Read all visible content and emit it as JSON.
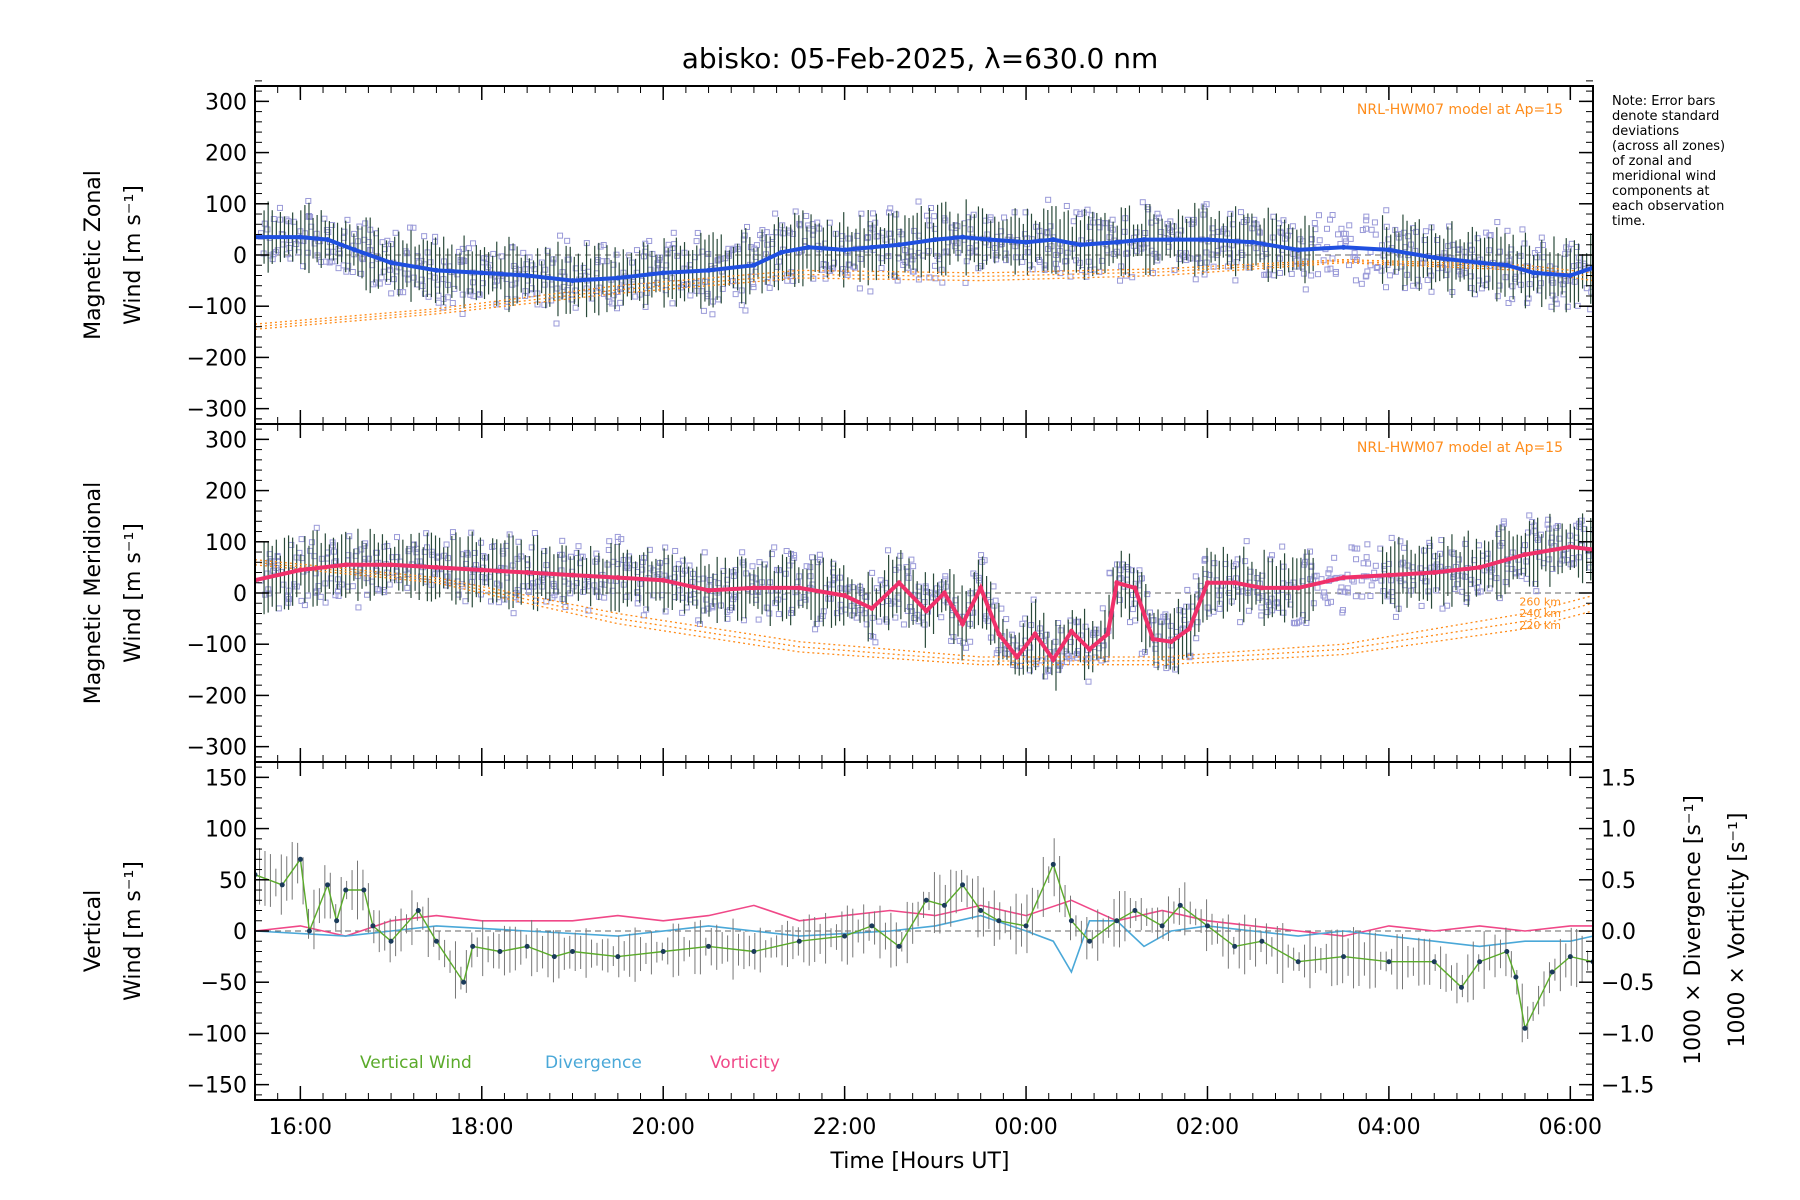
{
  "chart_data": {
    "title": "abisko: 05-Feb-2025, λ=630.0 nm",
    "x_axis": {
      "label": "Time [Hours UT]",
      "ticks": [
        "16:00",
        "18:00",
        "20:00",
        "22:00",
        "00:00",
        "02:00",
        "04:00",
        "06:00"
      ],
      "tick_hours": [
        16,
        18,
        20,
        22,
        24,
        26,
        28,
        30
      ],
      "range_hours": [
        15.5,
        30.25
      ]
    },
    "note": [
      "Note: Error bars",
      "denote standard",
      "deviations",
      "(across all zones)",
      "of zonal and",
      "meridional wind",
      "components at",
      "each observation",
      "time."
    ],
    "panels": [
      {
        "id": "zonal",
        "type": "line",
        "ylabel": [
          "Magnetic Zonal",
          "Wind [m s⁻¹]"
        ],
        "ylim": [
          -330,
          330
        ],
        "yticks": [
          300,
          200,
          100,
          0,
          -100,
          -200,
          -300
        ],
        "model_label": "NRL-HWM07 model at Ap=15",
        "series": [
          {
            "name": "Magnetic Zonal Wind",
            "x": [
              15.5,
              16.0,
              16.3,
              16.6,
              17.0,
              17.5,
              18.0,
              18.5,
              19.0,
              19.5,
              20.0,
              20.5,
              21.0,
              21.3,
              21.6,
              22.0,
              22.3,
              22.6,
              23.0,
              23.3,
              23.6,
              24.0,
              24.3,
              24.6,
              25.0,
              25.3,
              25.6,
              26.0,
              26.5,
              27.0,
              27.5,
              28.0,
              28.5,
              29.0,
              29.3,
              29.6,
              30.0,
              30.25
            ],
            "values": [
              35,
              35,
              30,
              10,
              -15,
              -30,
              -35,
              -40,
              -50,
              -45,
              -35,
              -30,
              -20,
              5,
              15,
              10,
              15,
              20,
              30,
              35,
              30,
              25,
              30,
              20,
              25,
              30,
              30,
              30,
              25,
              10,
              15,
              10,
              -5,
              -15,
              -20,
              -35,
              -40,
              -25
            ]
          }
        ],
        "model_series": [
          {
            "name": "220 km",
            "x": [
              15.5,
              17.5,
              19.5,
              21.5,
              23.5,
              25.5,
              27.5,
              29.5,
              30.25
            ],
            "values": [
              -145,
              -115,
              -75,
              -45,
              -50,
              -40,
              -15,
              -30,
              -50
            ]
          },
          {
            "name": "240 km",
            "x": [
              15.5,
              17.5,
              19.5,
              21.5,
              23.5,
              25.5,
              27.5,
              29.5,
              30.25
            ],
            "values": [
              -140,
              -110,
              -68,
              -38,
              -42,
              -33,
              -12,
              -25,
              -42
            ]
          },
          {
            "name": "260 km",
            "x": [
              15.5,
              17.5,
              19.5,
              21.5,
              23.5,
              25.5,
              27.5,
              29.5,
              30.25
            ],
            "values": [
              -135,
              -105,
              -60,
              -30,
              -35,
              -27,
              -9,
              -20,
              -35
            ]
          }
        ]
      },
      {
        "id": "meridional",
        "type": "line",
        "ylabel": [
          "Magnetic Meridional",
          "Wind [m s⁻¹]"
        ],
        "ylim": [
          -330,
          330
        ],
        "yticks": [
          300,
          200,
          100,
          0,
          -100,
          -200,
          -300
        ],
        "model_label": "NRL-HWM07 model at Ap=15",
        "model_alt_labels": [
          "260 km",
          "240 km",
          "220 km"
        ],
        "series": [
          {
            "name": "Magnetic Meridional Wind",
            "x": [
              15.5,
              16.0,
              16.5,
              17.0,
              17.5,
              18.0,
              18.5,
              19.0,
              19.5,
              20.0,
              20.5,
              21.0,
              21.5,
              22.0,
              22.3,
              22.6,
              22.9,
              23.1,
              23.3,
              23.5,
              23.7,
              23.9,
              24.1,
              24.3,
              24.5,
              24.7,
              24.9,
              25.0,
              25.2,
              25.4,
              25.6,
              25.8,
              26.0,
              26.3,
              26.6,
              27.0,
              27.5,
              28.0,
              28.5,
              29.0,
              29.5,
              30.0,
              30.25
            ],
            "values": [
              25,
              45,
              55,
              55,
              50,
              45,
              40,
              35,
              30,
              25,
              5,
              10,
              10,
              -5,
              -30,
              20,
              -35,
              0,
              -60,
              10,
              -80,
              -125,
              -80,
              -130,
              -75,
              -110,
              -80,
              20,
              10,
              -90,
              -95,
              -70,
              20,
              20,
              10,
              10,
              30,
              35,
              40,
              50,
              75,
              90,
              85
            ]
          }
        ],
        "model_series": [
          {
            "name": "220 km",
            "x": [
              15.5,
              17.5,
              19.5,
              21.5,
              23.5,
              25.5,
              27.5,
              29.5,
              30.25
            ],
            "values": [
              55,
              20,
              -60,
              -115,
              -140,
              -140,
              -120,
              -70,
              -35
            ]
          },
          {
            "name": "240 km",
            "x": [
              15.5,
              17.5,
              19.5,
              21.5,
              23.5,
              25.5,
              27.5,
              29.5,
              30.25
            ],
            "values": [
              60,
              25,
              -50,
              -105,
              -133,
              -132,
              -110,
              -55,
              -20
            ]
          },
          {
            "name": "260 km",
            "x": [
              15.5,
              17.5,
              19.5,
              21.5,
              23.5,
              25.5,
              27.5,
              29.5,
              30.25
            ],
            "values": [
              65,
              30,
              -40,
              -95,
              -125,
              -125,
              -100,
              -40,
              -5
            ]
          }
        ]
      },
      {
        "id": "vertical",
        "type": "line",
        "ylabel": [
          "Vertical",
          "Wind [m s⁻¹]"
        ],
        "ylim": [
          -165,
          165
        ],
        "yticks": [
          150,
          100,
          50,
          0,
          -50,
          -100,
          -150
        ],
        "y2": {
          "labels": [
            "1000 × Divergence [s⁻¹]",
            "1000 × Vorticity [s⁻¹]"
          ],
          "ylim": [
            -1.65,
            1.65
          ],
          "ticks": [
            "1.5",
            "1.0",
            "0.5",
            "0.0",
            "−0.5",
            "−1.0",
            "−1.5"
          ]
        },
        "legend": [
          "Vertical Wind",
          "Divergence",
          "Vorticity"
        ],
        "series": [
          {
            "name": "Vertical Wind",
            "x": [
              15.5,
              15.8,
              16.0,
              16.1,
              16.3,
              16.4,
              16.5,
              16.7,
              16.8,
              17.0,
              17.3,
              17.5,
              17.8,
              17.9,
              18.2,
              18.5,
              18.8,
              19.0,
              19.5,
              20.0,
              20.5,
              21.0,
              21.5,
              22.0,
              22.3,
              22.6,
              22.9,
              23.1,
              23.3,
              23.5,
              23.7,
              24.0,
              24.3,
              24.5,
              24.7,
              25.0,
              25.2,
              25.5,
              25.7,
              26.0,
              26.3,
              26.6,
              27.0,
              27.5,
              28.0,
              28.5,
              28.8,
              29.0,
              29.3,
              29.4,
              29.5,
              29.8,
              30.0,
              30.25
            ],
            "values": [
              55,
              45,
              70,
              0,
              45,
              10,
              40,
              40,
              5,
              -10,
              20,
              -10,
              -50,
              -15,
              -20,
              -15,
              -25,
              -20,
              -25,
              -20,
              -15,
              -20,
              -10,
              -5,
              5,
              -15,
              30,
              25,
              45,
              20,
              10,
              5,
              65,
              10,
              -10,
              10,
              20,
              5,
              25,
              5,
              -15,
              -10,
              -30,
              -25,
              -30,
              -30,
              -55,
              -30,
              -20,
              -45,
              -95,
              -40,
              -25,
              -30
            ]
          },
          {
            "name": "Divergence",
            "x": [
              15.5,
              16.5,
              17.5,
              18.5,
              19.5,
              20.5,
              21.5,
              22.5,
              23.0,
              23.5,
              24.0,
              24.3,
              24.5,
              24.7,
              25.0,
              25.3,
              25.6,
              26.0,
              26.5,
              27.0,
              27.5,
              28.0,
              28.5,
              29.0,
              29.5,
              30.0,
              30.25
            ],
            "values": [
              0.0,
              -0.05,
              0.05,
              0.0,
              -0.05,
              0.05,
              -0.05,
              0.0,
              0.05,
              0.15,
              0.0,
              -0.1,
              -0.4,
              0.1,
              0.1,
              -0.15,
              0.0,
              0.05,
              0.0,
              -0.05,
              0.0,
              -0.05,
              -0.1,
              -0.15,
              -0.1,
              -0.1,
              -0.05
            ]
          },
          {
            "name": "Vorticity",
            "x": [
              15.5,
              16.0,
              16.5,
              17.0,
              17.5,
              18.0,
              18.5,
              19.0,
              19.5,
              20.0,
              20.5,
              21.0,
              21.5,
              22.0,
              22.5,
              23.0,
              23.5,
              24.0,
              24.5,
              25.0,
              25.5,
              26.0,
              26.5,
              27.0,
              27.5,
              28.0,
              28.5,
              29.0,
              29.5,
              30.0,
              30.25
            ],
            "values": [
              0.0,
              0.05,
              -0.05,
              0.1,
              0.15,
              0.1,
              0.1,
              0.1,
              0.15,
              0.1,
              0.15,
              0.25,
              0.1,
              0.15,
              0.2,
              0.15,
              0.25,
              0.15,
              0.3,
              0.1,
              0.2,
              0.1,
              0.05,
              0.0,
              -0.05,
              0.05,
              0.0,
              0.05,
              0.0,
              0.05,
              0.05
            ]
          }
        ]
      }
    ],
    "colors": {
      "zonal": "#1f4fe0",
      "meridional": "#f0306a",
      "vertical": "#5aaa2a",
      "divergence": "#4aa8d8",
      "vorticity": "#f04888",
      "model": "#ff8c1a",
      "scatter": "#9a9ad8",
      "errorbar": "#2a4a3a"
    }
  }
}
